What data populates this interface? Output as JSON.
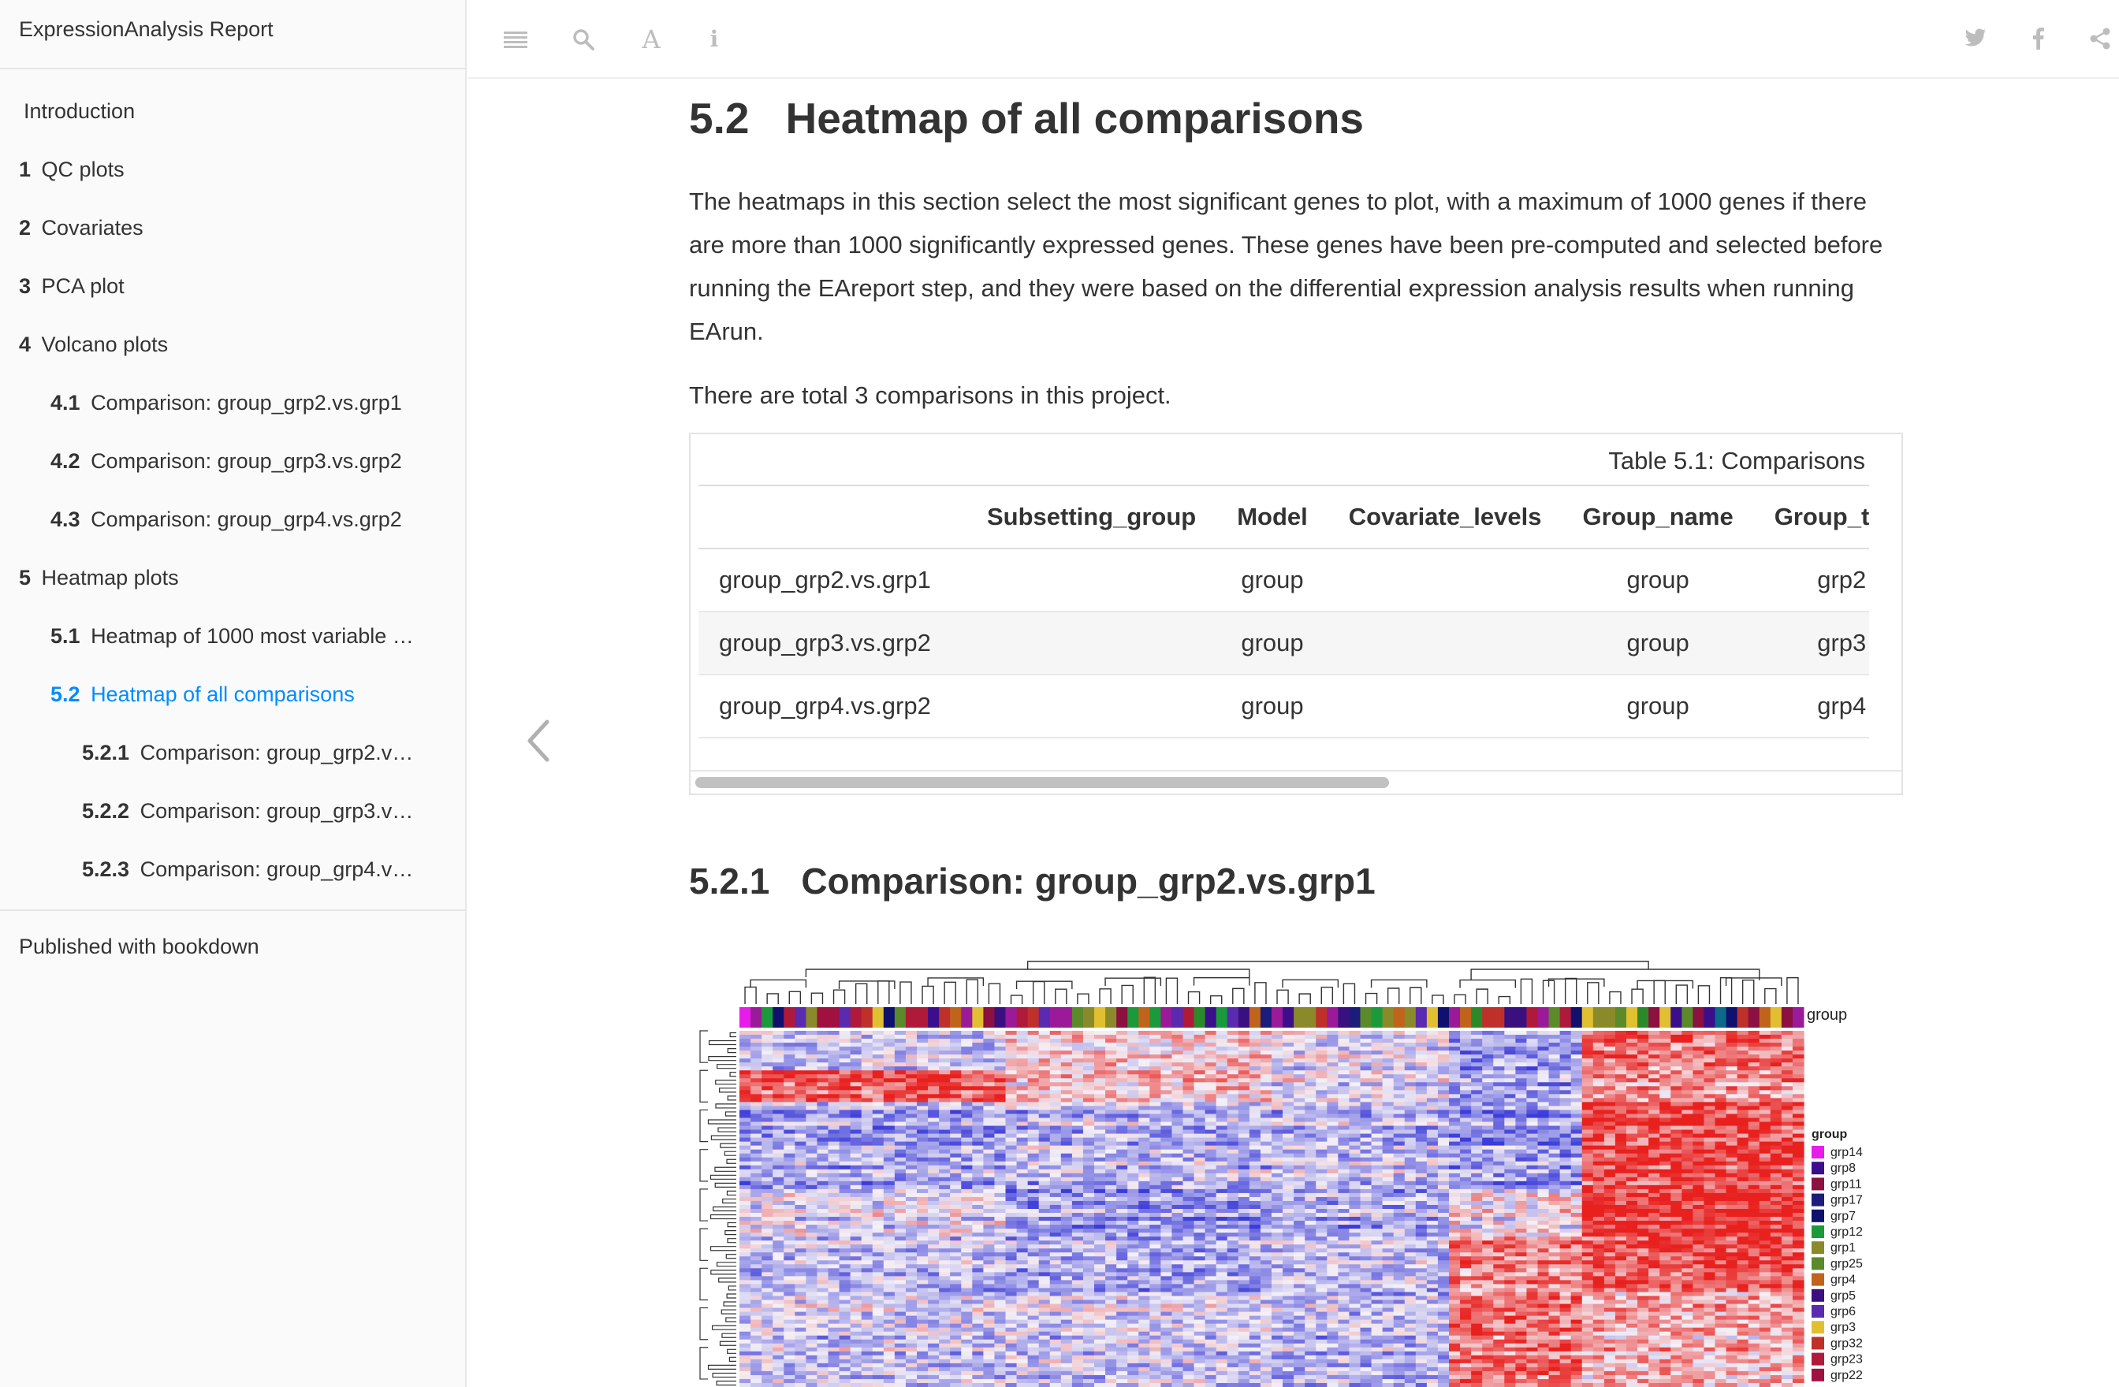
{
  "sidebar": {
    "book_title": "ExpressionAnalysis Report",
    "items": [
      {
        "num": "",
        "label": "Introduction",
        "level": 1
      },
      {
        "num": "1",
        "label": "QC plots",
        "level": 1
      },
      {
        "num": "2",
        "label": "Covariates",
        "level": 1
      },
      {
        "num": "3",
        "label": "PCA plot",
        "level": 1
      },
      {
        "num": "4",
        "label": "Volcano plots",
        "level": 1
      },
      {
        "num": "4.1",
        "label": "Comparison: group_grp2.vs.grp1",
        "level": 2
      },
      {
        "num": "4.2",
        "label": "Comparison: group_grp3.vs.grp2",
        "level": 2
      },
      {
        "num": "4.3",
        "label": "Comparison: group_grp4.vs.grp2",
        "level": 2
      },
      {
        "num": "5",
        "label": "Heatmap plots",
        "level": 1
      },
      {
        "num": "5.1",
        "label": "Heatmap of 1000 most variable …",
        "level": 2
      },
      {
        "num": "5.2",
        "label": "Heatmap of all comparisons",
        "level": 2,
        "active": true
      },
      {
        "num": "5.2.1",
        "label": "Comparison: group_grp2.v…",
        "level": 3
      },
      {
        "num": "5.2.2",
        "label": "Comparison: group_grp3.v…",
        "level": 3
      },
      {
        "num": "5.2.3",
        "label": "Comparison: group_grp4.v…",
        "level": 3
      }
    ],
    "published": "Published with bookdown"
  },
  "header": {
    "icons": [
      "menu-icon",
      "search-icon",
      "font-icon",
      "info-icon",
      "twitter-icon",
      "facebook-icon",
      "share-icon"
    ]
  },
  "main": {
    "section_num": "5.2",
    "section_title": "Heatmap of all comparisons",
    "paragraph1": "The heatmaps in this section select the most significant genes to plot, with a maximum of 1000 genes if there are more than 1000 significantly expressed genes. These genes have been pre-computed and selected before running the EAreport step, and they were based on the differential expression analysis results when running EArun.",
    "paragraph2": "There are total 3 comparisons in this project.",
    "table": {
      "caption": "Table 5.1: Comparisons",
      "headers": [
        "",
        "Subsetting_group",
        "Model",
        "Covariate_levels",
        "Group_name",
        "Group_t"
      ],
      "rows": [
        [
          "group_grp2.vs.grp1",
          "",
          "group",
          "",
          "group",
          "grp2"
        ],
        [
          "group_grp3.vs.grp2",
          "",
          "group",
          "",
          "group",
          "grp3"
        ],
        [
          "group_grp4.vs.grp2",
          "",
          "group",
          "",
          "group",
          "grp4"
        ]
      ]
    },
    "subsection_num": "5.2.1",
    "subsection_title": "Comparison: group_grp2.vs.grp1"
  },
  "heatmap": {
    "annotation_label": "group",
    "legend_title": "group",
    "legend": [
      {
        "name": "grp14",
        "color": "#e81ce8"
      },
      {
        "name": "grp8",
        "color": "#3b0f8c"
      },
      {
        "name": "grp11",
        "color": "#8c1040"
      },
      {
        "name": "grp17",
        "color": "#1c1c7a"
      },
      {
        "name": "grp7",
        "color": "#10106e"
      },
      {
        "name": "grp12",
        "color": "#1a9a3a"
      },
      {
        "name": "grp1",
        "color": "#8a8a2a"
      },
      {
        "name": "grp25",
        "color": "#5a8a2a"
      },
      {
        "name": "grp4",
        "color": "#c0641c"
      },
      {
        "name": "grp5",
        "color": "#3a1080"
      },
      {
        "name": "grp6",
        "color": "#5a2ab0"
      },
      {
        "name": "grp3",
        "color": "#e0c030"
      },
      {
        "name": "grp32",
        "color": "#c0302a"
      },
      {
        "name": "grp23",
        "color": "#b01a3a"
      },
      {
        "name": "grp22",
        "color": "#a01040"
      }
    ],
    "colors": {
      "low": "#3b3bd8",
      "mid": "#f4f0f6",
      "high": "#e8201e"
    }
  }
}
